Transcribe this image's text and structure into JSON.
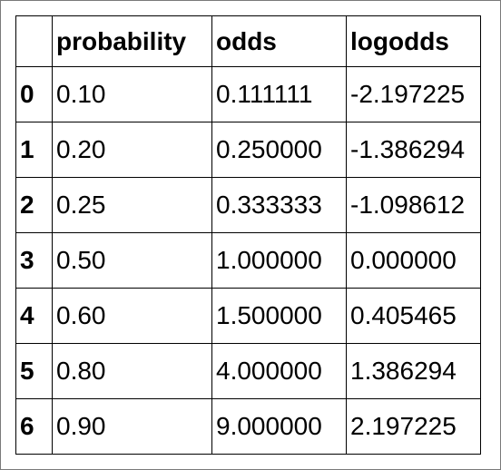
{
  "table": {
    "index_header": "",
    "columns": [
      "probability",
      "odds",
      "logodds"
    ],
    "rows": [
      {
        "index": "0",
        "probability": "0.10",
        "odds": "0.111111",
        "logodds": "-2.197225"
      },
      {
        "index": "1",
        "probability": "0.20",
        "odds": "0.250000",
        "logodds": "-1.386294"
      },
      {
        "index": "2",
        "probability": "0.25",
        "odds": "0.333333",
        "logodds": "-1.098612"
      },
      {
        "index": "3",
        "probability": "0.50",
        "odds": "1.000000",
        "logodds": "0.000000"
      },
      {
        "index": "4",
        "probability": "0.60",
        "odds": "1.500000",
        "logodds": "0.405465"
      },
      {
        "index": "5",
        "probability": "0.80",
        "odds": "4.000000",
        "logodds": "1.386294"
      },
      {
        "index": "6",
        "probability": "0.90",
        "odds": "9.000000",
        "logodds": "2.197225"
      }
    ]
  }
}
